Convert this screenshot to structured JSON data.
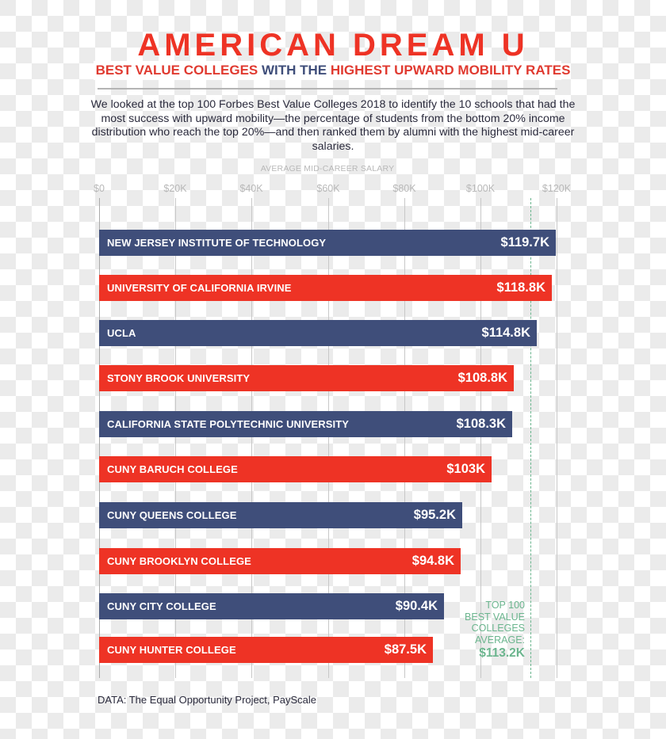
{
  "header": {
    "title": "AMERICAN DREAM U",
    "subtitle_parts": [
      {
        "text": "BEST VALUE COLLEGES ",
        "color": "#e03a30"
      },
      {
        "text": "WITH THE ",
        "color": "#3f4e7a"
      },
      {
        "text": "HIGHEST UPWARD MOBILITY RATES",
        "color": "#e03a30"
      }
    ],
    "description": "We looked at the top 100 Forbes Best Value Colleges 2018 to identify the 10 schools that had the most success with upward mobility—the percentage  of students from the bottom 20% income distribution who reach the top 20%—and then ranked them by alumni with the highest mid-career salaries."
  },
  "colors": {
    "title_red": "#ee3325",
    "bar_red": "#ee3325",
    "bar_blue": "#3f4e7a",
    "average_green": "#6bb58e",
    "axis_gray": "#b8b8b8"
  },
  "chart_data": {
    "type": "bar",
    "orientation": "horizontal",
    "title": "AMERICAN DREAM U",
    "subtitle": "BEST VALUE COLLEGES WITH THE HIGHEST UPWARD MOBILITY RATES",
    "xlabel": "AVERAGE MID-CAREER SALARY",
    "ylabel": "",
    "xlim": [
      0,
      120
    ],
    "unit": "$K",
    "ticks": [
      "$0",
      "$20K",
      "$40K",
      "$60K",
      "$80K",
      "$100K",
      "$120K"
    ],
    "tick_values": [
      0,
      20,
      40,
      60,
      80,
      100,
      120
    ],
    "grid": true,
    "categories": [
      "NEW JERSEY INSTITUTE OF TECHNOLOGY",
      "UNIVERSITY OF CALIFORNIA IRVINE",
      "UCLA",
      "STONY BROOK UNIVERSITY",
      "CALIFORNIA STATE POLYTECHNIC UNIVERSITY",
      "CUNY BARUCH COLLEGE",
      "CUNY QUEENS COLLEGE",
      "CUNY BROOKLYN COLLEGE",
      "CUNY CITY COLLEGE",
      "CUNY HUNTER COLLEGE"
    ],
    "values": [
      119.7,
      118.8,
      114.8,
      108.8,
      108.3,
      103,
      95.2,
      94.8,
      90.4,
      87.5
    ],
    "value_labels": [
      "$119.7K",
      "$118.8K",
      "$114.8K",
      "$108.8K",
      "$108.3K",
      "$103K",
      "$95.2K",
      "$94.8K",
      "$90.4K",
      "$87.5K"
    ],
    "bar_colors": [
      "blue",
      "red",
      "blue",
      "red",
      "blue",
      "red",
      "blue",
      "red",
      "blue",
      "red"
    ],
    "reference_line": {
      "value": 113.2,
      "label_lines": [
        "TOP 100",
        "BEST VALUE",
        "COLLEGES",
        "AVERAGE:"
      ],
      "value_label": "$113.2K",
      "style": "dashed",
      "color": "#6bb58e"
    },
    "source": "DATA: The Equal Opportunity Project, PayScale"
  },
  "footer": {
    "source": "DATA: The Equal Opportunity Project, PayScale"
  }
}
